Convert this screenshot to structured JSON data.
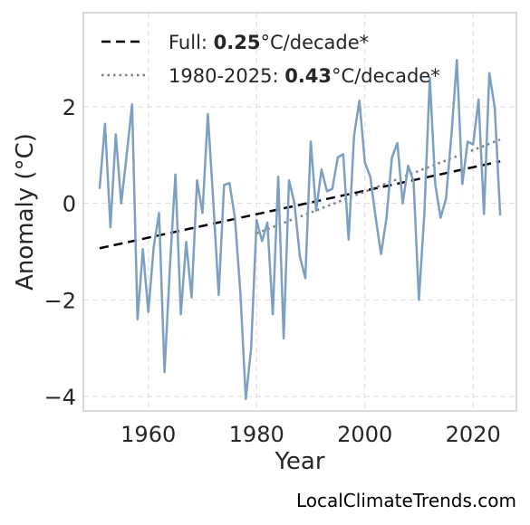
{
  "chart_data": {
    "type": "line",
    "xlabel": "Year",
    "ylabel": "Anomaly (°C)",
    "xlim": [
      1948,
      2028
    ],
    "ylim": [
      -4.3,
      3.95
    ],
    "x_ticks": [
      1960,
      1980,
      2000,
      2020
    ],
    "y_ticks": [
      -4,
      -2,
      0,
      2
    ],
    "grid": true,
    "legend_position": "top-left",
    "series": [
      {
        "style": "solid",
        "color": "#7c9fc2",
        "x": [
          1951,
          1952,
          1953,
          1954,
          1955,
          1956,
          1957,
          1958,
          1959,
          1960,
          1961,
          1962,
          1963,
          1964,
          1965,
          1966,
          1967,
          1968,
          1969,
          1970,
          1971,
          1972,
          1973,
          1974,
          1975,
          1976,
          1977,
          1978,
          1979,
          1980,
          1981,
          1982,
          1983,
          1984,
          1985,
          1986,
          1987,
          1988,
          1989,
          1990,
          1991,
          1992,
          1993,
          1994,
          1995,
          1996,
          1997,
          1998,
          1999,
          2000,
          2001,
          2002,
          2003,
          2004,
          2005,
          2006,
          2007,
          2008,
          2009,
          2010,
          2011,
          2012,
          2013,
          2014,
          2015,
          2016,
          2017,
          2018,
          2019,
          2020,
          2021,
          2022,
          2023,
          2024,
          2025
        ],
        "y": [
          0.3,
          1.65,
          -0.5,
          1.43,
          0.0,
          1.0,
          2.05,
          -2.4,
          -0.95,
          -2.25,
          -0.9,
          -0.2,
          -3.5,
          -1.3,
          0.6,
          -2.3,
          -0.8,
          -1.95,
          0.48,
          -0.2,
          1.85,
          0.05,
          -1.9,
          0.38,
          0.42,
          -0.3,
          -1.85,
          -4.05,
          -3.0,
          -0.35,
          -0.78,
          -0.4,
          -2.3,
          0.55,
          -2.8,
          0.48,
          0.0,
          -1.1,
          -1.55,
          1.28,
          -0.15,
          0.7,
          0.25,
          0.3,
          0.95,
          1.02,
          -0.75,
          1.4,
          2.13,
          0.85,
          0.55,
          -0.3,
          -1.05,
          -0.3,
          0.95,
          1.25,
          0.0,
          0.78,
          0.45,
          -2.0,
          -0.2,
          2.6,
          0.4,
          -0.3,
          0.1,
          1.42,
          2.97,
          0.4,
          1.28,
          1.22,
          2.15,
          -0.22,
          2.7,
          1.98,
          -0.25
        ]
      }
    ],
    "trends": [
      {
        "label_prefix": "Full: ",
        "rate": "0.25",
        "label_suffix": "°C/decade*",
        "style": "dashed",
        "color": "#000000",
        "x": [
          1951,
          2025
        ],
        "y": [
          -0.93,
          0.87
        ]
      },
      {
        "label_prefix": "1980-2025: ",
        "rate": "0.43",
        "label_suffix": "°C/decade*",
        "style": "dotted",
        "color": "#808080",
        "x": [
          1980,
          2025
        ],
        "y": [
          -0.62,
          1.32
        ]
      }
    ]
  },
  "credit": "LocalClimateTrends.com"
}
